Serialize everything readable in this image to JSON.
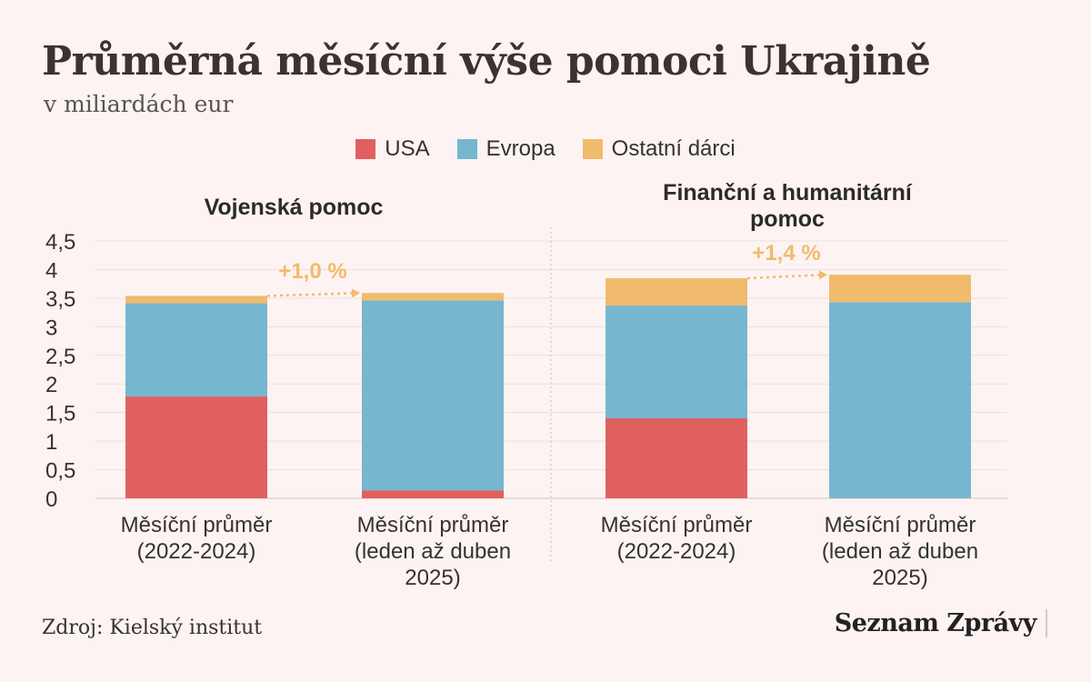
{
  "title": "Průměrná měsíční výše pomoci Ukrajině",
  "subtitle": "v miliardách eur",
  "legend": [
    {
      "label": "USA",
      "color": "#e06060"
    },
    {
      "label": "Evropa",
      "color": "#77b6cf"
    },
    {
      "label": "Ostatní dárci",
      "color": "#f0bb6c"
    }
  ],
  "source": "Zdroj: Kielský institut",
  "brand": "Seznam Zprávy",
  "chart_data": [
    {
      "type": "bar",
      "stacked": true,
      "title": "Vojenská pomoc",
      "categories": [
        [
          "Měsíční průměr",
          "(2022-2024)"
        ],
        [
          "Měsíční průměr",
          "(leden až duben",
          "2025)"
        ]
      ],
      "series": [
        {
          "name": "USA",
          "values": [
            1.78,
            0.14
          ]
        },
        {
          "name": "Evropa",
          "values": [
            1.63,
            3.32
          ]
        },
        {
          "name": "Ostatní dárci",
          "values": [
            0.13,
            0.13
          ]
        }
      ],
      "annotation": "+1,0 %",
      "ylim": [
        0,
        4.5
      ],
      "yticks": [
        "0",
        "0,5",
        "1",
        "1,5",
        "2",
        "2,5",
        "3",
        "3,5",
        "4",
        "4,5"
      ]
    },
    {
      "type": "bar",
      "stacked": true,
      "title": "Finanční a humanitární pomoc",
      "categories": [
        [
          "Měsíční průměr",
          "(2022-2024)"
        ],
        [
          "Měsíční průměr",
          "(leden až duben",
          "2025)"
        ]
      ],
      "series": [
        {
          "name": "USA",
          "values": [
            1.4,
            0.0
          ]
        },
        {
          "name": "Evropa",
          "values": [
            1.97,
            3.43
          ]
        },
        {
          "name": "Ostatní dárci",
          "values": [
            0.48,
            0.48
          ]
        }
      ],
      "annotation": "+1,4 %",
      "ylim": [
        0,
        4.5
      ]
    }
  ]
}
